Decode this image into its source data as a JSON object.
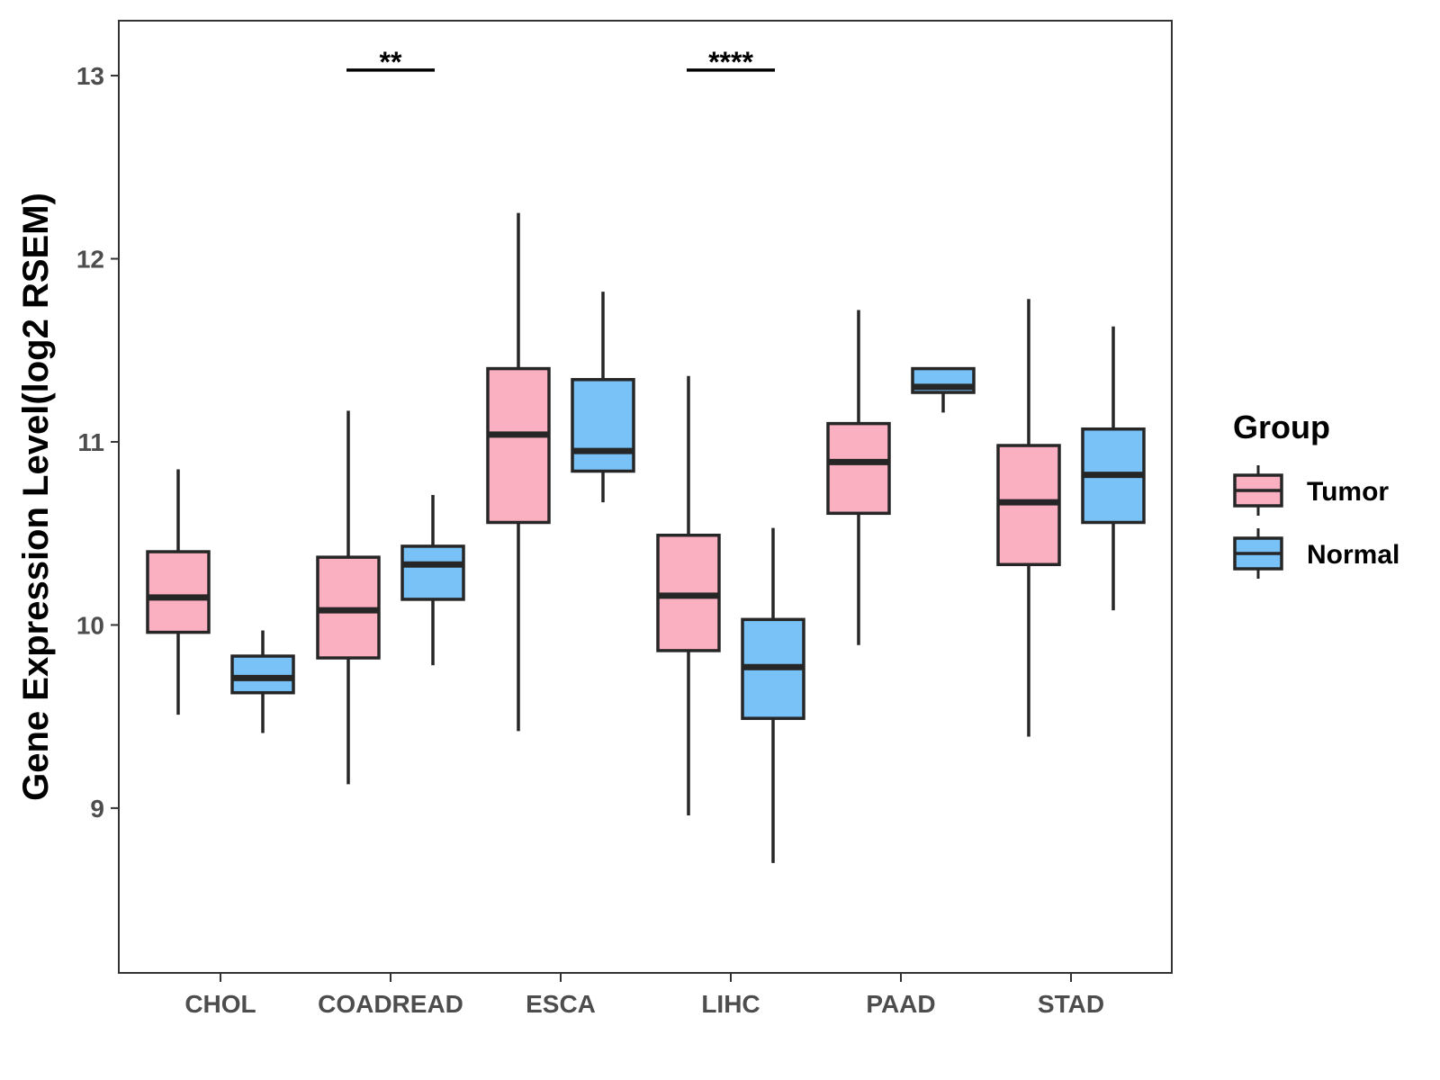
{
  "chart_data": {
    "type": "boxplot",
    "title": "",
    "xlabel": "",
    "ylabel": "Gene Expression Level(log2 RSEM)",
    "ylim": [
      8.1,
      13.3
    ],
    "yticks": [
      9,
      10,
      11,
      12,
      13
    ],
    "ytick_labels": [
      "9",
      "10",
      "11",
      "12",
      "13"
    ],
    "grid": false,
    "categories": [
      "CHOL",
      "COADREAD",
      "ESCA",
      "LIHC",
      "PAAD",
      "STAD"
    ],
    "legend": {
      "title": "Group",
      "position": "right",
      "entries": [
        "Tumor",
        "Normal"
      ]
    },
    "series": [
      {
        "name": "Tumor",
        "color": "#FBB0C2",
        "boxes": [
          {
            "category": "CHOL",
            "whisker_low": 9.51,
            "q1": 9.96,
            "median": 10.15,
            "q3": 10.4,
            "whisker_high": 10.85
          },
          {
            "category": "COADREAD",
            "whisker_low": 9.13,
            "q1": 9.82,
            "median": 10.08,
            "q3": 10.37,
            "whisker_high": 11.17
          },
          {
            "category": "ESCA",
            "whisker_low": 9.42,
            "q1": 10.56,
            "median": 11.04,
            "q3": 11.4,
            "whisker_high": 12.25
          },
          {
            "category": "LIHC",
            "whisker_low": 8.96,
            "q1": 9.86,
            "median": 10.16,
            "q3": 10.49,
            "whisker_high": 11.36
          },
          {
            "category": "PAAD",
            "whisker_low": 9.89,
            "q1": 10.61,
            "median": 10.89,
            "q3": 11.1,
            "whisker_high": 11.72
          },
          {
            "category": "STAD",
            "whisker_low": 9.39,
            "q1": 10.33,
            "median": 10.67,
            "q3": 10.98,
            "whisker_high": 11.78
          }
        ]
      },
      {
        "name": "Normal",
        "color": "#79C2F8",
        "boxes": [
          {
            "category": "CHOL",
            "whisker_low": 9.41,
            "q1": 9.63,
            "median": 9.71,
            "q3": 9.83,
            "whisker_high": 9.97
          },
          {
            "category": "COADREAD",
            "whisker_low": 9.78,
            "q1": 10.14,
            "median": 10.33,
            "q3": 10.43,
            "whisker_high": 10.71
          },
          {
            "category": "ESCA",
            "whisker_low": 10.67,
            "q1": 10.84,
            "median": 10.95,
            "q3": 11.34,
            "whisker_high": 11.82
          },
          {
            "category": "LIHC",
            "whisker_low": 8.7,
            "q1": 9.49,
            "median": 9.77,
            "q3": 10.03,
            "whisker_high": 10.53
          },
          {
            "category": "PAAD",
            "whisker_low": 11.16,
            "q1": 11.27,
            "median": 11.3,
            "q3": 11.4,
            "whisker_high": 11.4
          },
          {
            "category": "STAD",
            "whisker_low": 10.08,
            "q1": 10.56,
            "median": 10.82,
            "q3": 11.07,
            "whisker_high": 11.63
          }
        ]
      }
    ],
    "annotations": [
      {
        "category": "COADREAD",
        "label": "**",
        "y": 13.03
      },
      {
        "category": "LIHC",
        "label": "****",
        "y": 13.03
      }
    ]
  }
}
